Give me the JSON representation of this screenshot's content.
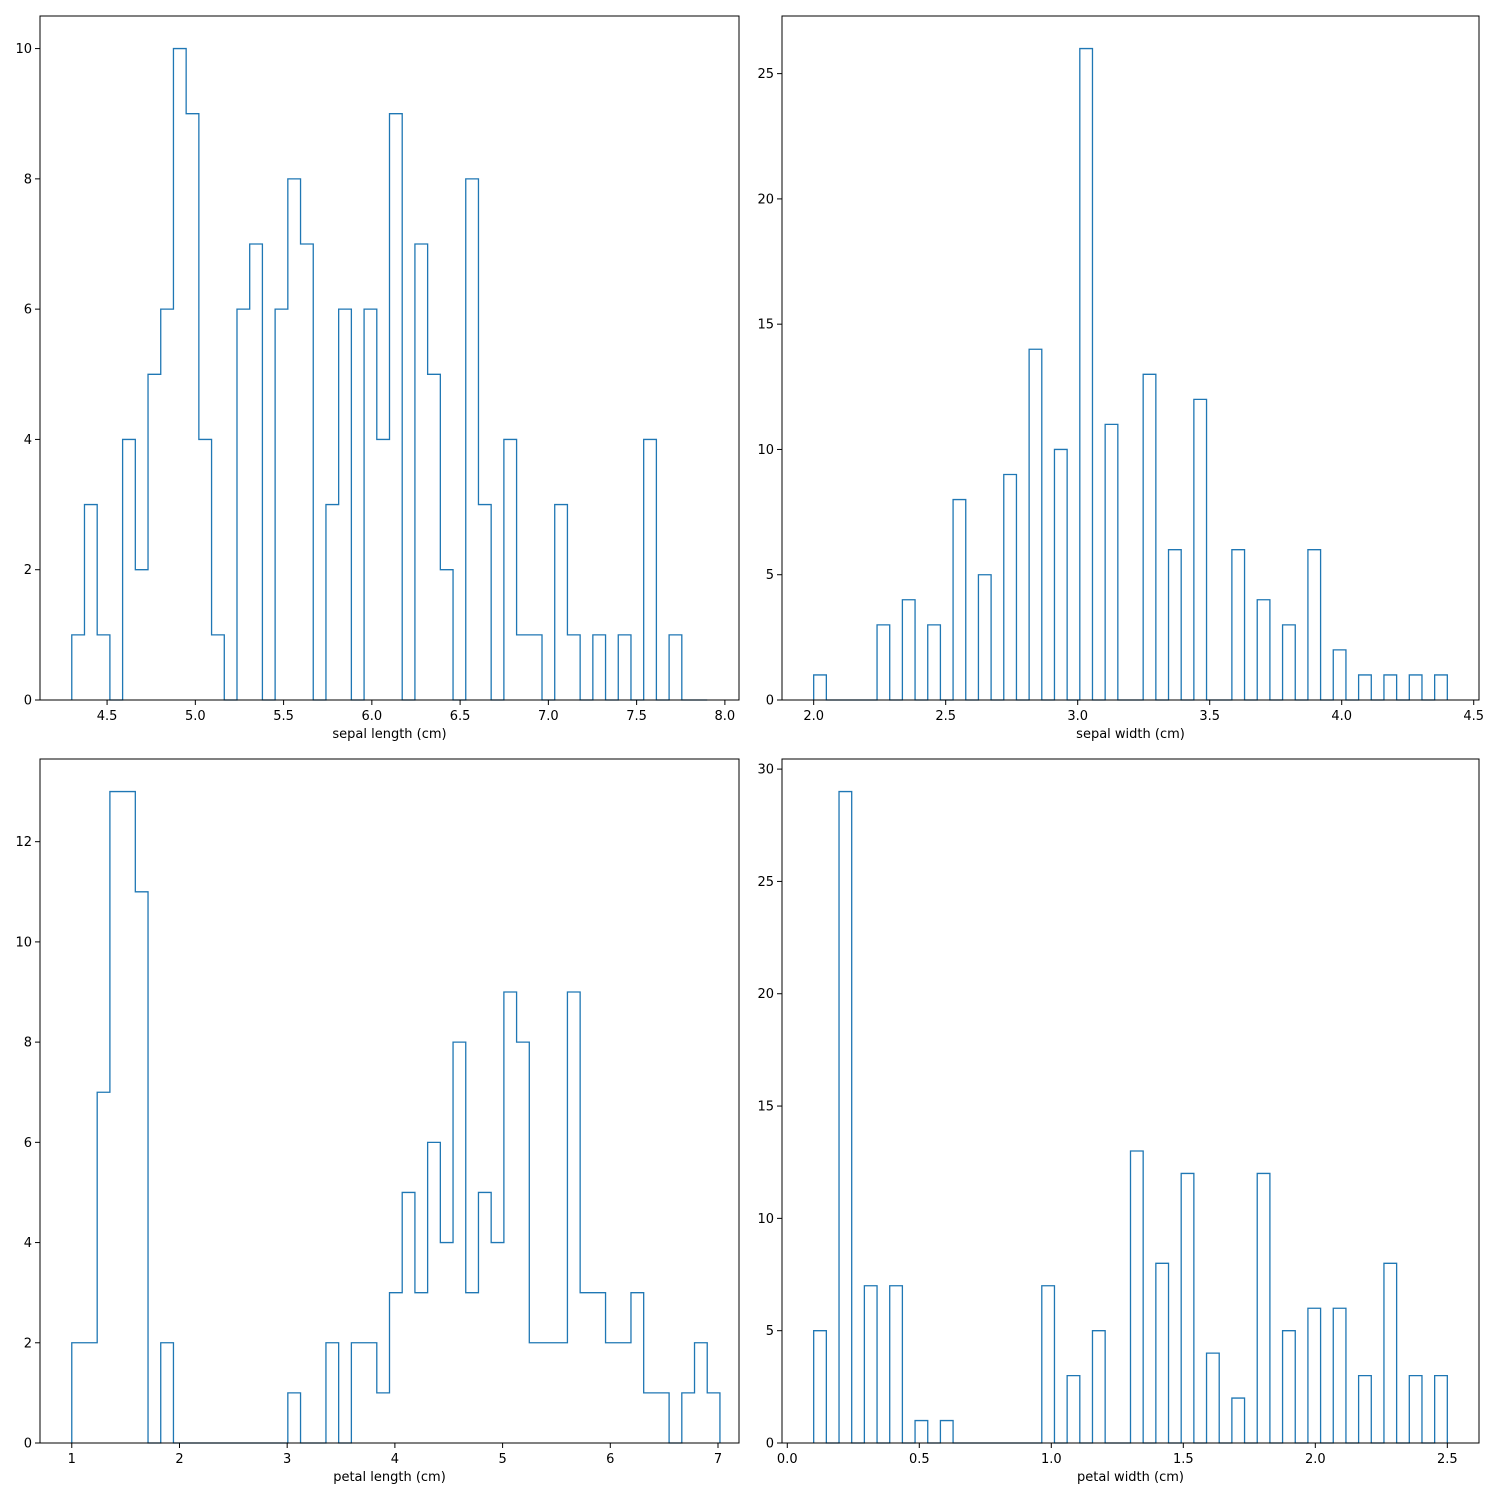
{
  "chart_data": [
    {
      "type": "histogram",
      "xlabel": "sepal length (cm)",
      "ylabel": "",
      "xlim": [
        4.12,
        8.08
      ],
      "ylim": [
        0,
        10.5
      ],
      "xticks": [
        4.5,
        5.0,
        5.5,
        6.0,
        6.5,
        7.0,
        7.5,
        8.0
      ],
      "xtick_labels": [
        "4.5",
        "5.0",
        "5.5",
        "6.0",
        "6.5",
        "7.0",
        "7.5",
        "8.0"
      ],
      "yticks": [
        0,
        2,
        4,
        6,
        8,
        10
      ],
      "ytick_labels": [
        "0",
        "2",
        "4",
        "6",
        "8",
        "10"
      ],
      "bin_start": 4.3,
      "bin_width": 0.072,
      "counts": [
        1,
        3,
        1,
        0,
        4,
        2,
        5,
        6,
        10,
        9,
        4,
        1,
        0,
        6,
        7,
        0,
        6,
        8,
        7,
        0,
        3,
        6,
        0,
        6,
        4,
        9,
        0,
        7,
        5,
        2,
        0,
        8,
        3,
        0,
        4,
        1,
        1,
        0,
        3,
        1,
        0,
        1,
        0,
        1,
        0,
        4,
        0,
        1,
        0,
        0
      ],
      "color": "#1f77b4",
      "grid": false
    },
    {
      "type": "histogram",
      "xlabel": "sepal width (cm)",
      "ylabel": "",
      "xlim": [
        1.88,
        4.52
      ],
      "ylim": [
        0,
        27.3
      ],
      "xticks": [
        2.0,
        2.5,
        3.0,
        3.5,
        4.0,
        4.5
      ],
      "xtick_labels": [
        "2.0",
        "2.5",
        "3.0",
        "3.5",
        "4.0",
        "4.5"
      ],
      "yticks": [
        0,
        5,
        10,
        15,
        20,
        25
      ],
      "ytick_labels": [
        "0",
        "5",
        "10",
        "15",
        "20",
        "25"
      ],
      "bin_start": 2.0,
      "bin_width": 0.048,
      "counts": [
        1,
        0,
        0,
        0,
        0,
        3,
        0,
        4,
        0,
        3,
        0,
        8,
        0,
        5,
        0,
        9,
        0,
        14,
        0,
        10,
        0,
        26,
        0,
        11,
        0,
        0,
        13,
        0,
        6,
        0,
        12,
        0,
        0,
        6,
        0,
        4,
        0,
        3,
        0,
        6,
        0,
        2,
        0,
        1,
        0,
        1,
        0,
        1,
        0,
        1
      ],
      "color": "#1f77b4",
      "grid": false
    },
    {
      "type": "histogram",
      "xlabel": "petal length (cm)",
      "ylabel": "",
      "xlim": [
        0.705,
        7.195
      ],
      "ylim": [
        0,
        13.65
      ],
      "xticks": [
        1,
        2,
        3,
        4,
        5,
        6,
        7
      ],
      "xtick_labels": [
        "1",
        "2",
        "3",
        "4",
        "5",
        "6",
        "7"
      ],
      "yticks": [
        0,
        2,
        4,
        6,
        8,
        10,
        12
      ],
      "ytick_labels": [
        "0",
        "2",
        "4",
        "6",
        "8",
        "10",
        "12"
      ],
      "bin_start": 1.0,
      "bin_width": 0.118,
      "counts": [
        2,
        2,
        7,
        13,
        13,
        11,
        0,
        2,
        0,
        0,
        0,
        0,
        0,
        0,
        0,
        0,
        0,
        1,
        0,
        0,
        2,
        0,
        2,
        2,
        1,
        3,
        5,
        3,
        6,
        4,
        8,
        3,
        5,
        4,
        9,
        8,
        2,
        2,
        2,
        9,
        3,
        3,
        2,
        2,
        3,
        1,
        1,
        0,
        1,
        2,
        1
      ],
      "color": "#1f77b4",
      "grid": false
    },
    {
      "type": "histogram",
      "xlabel": "petal width (cm)",
      "ylabel": "",
      "xlim": [
        -0.02,
        2.62
      ],
      "ylim": [
        0,
        30.45
      ],
      "xticks": [
        0.0,
        0.5,
        1.0,
        1.5,
        2.0,
        2.5
      ],
      "xtick_labels": [
        "0.0",
        "0.5",
        "1.0",
        "1.5",
        "2.0",
        "2.5"
      ],
      "yticks": [
        0,
        5,
        10,
        15,
        20,
        25,
        30
      ],
      "ytick_labels": [
        "0",
        "5",
        "10",
        "15",
        "20",
        "25",
        "30"
      ],
      "bin_start": 0.1,
      "bin_width": 0.048,
      "counts": [
        5,
        0,
        29,
        0,
        7,
        0,
        7,
        0,
        1,
        0,
        1,
        0,
        0,
        0,
        0,
        0,
        0,
        0,
        7,
        0,
        3,
        0,
        5,
        0,
        0,
        13,
        0,
        8,
        0,
        12,
        0,
        4,
        0,
        2,
        0,
        12,
        0,
        5,
        0,
        6,
        0,
        6,
        0,
        3,
        0,
        8,
        0,
        3,
        0,
        3
      ],
      "color": "#1f77b4",
      "grid": false
    }
  ]
}
